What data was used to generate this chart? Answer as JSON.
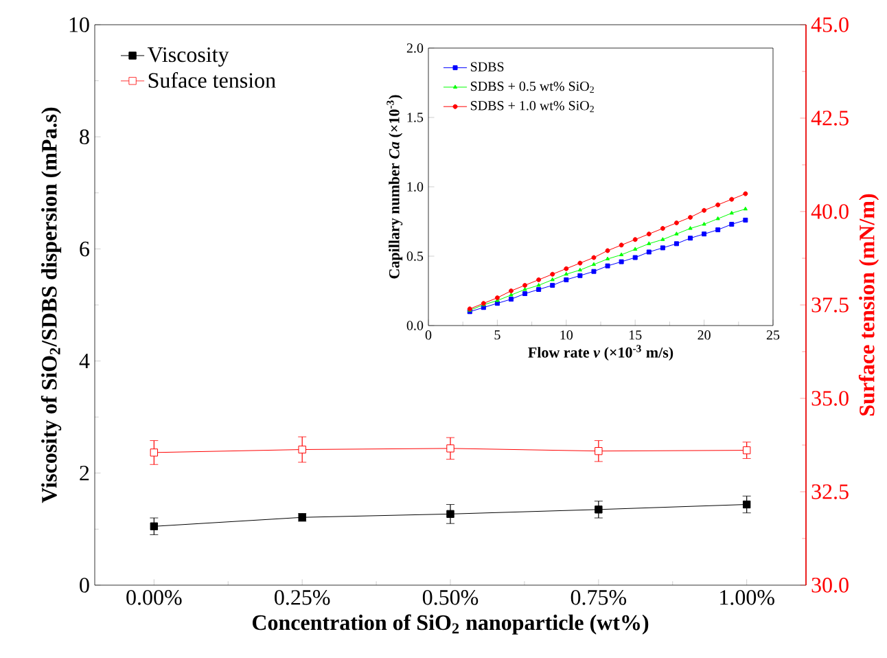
{
  "chart_data": [
    {
      "type": "line",
      "xlabel": "Concentration of SiO$_{2}$ nanoparticle (wt%)",
      "ylabel": "Viscosity of SiO$_{2}$/SDBS dispersion (mPa.s)",
      "y2label": "Surface tension (mN/m)",
      "x": [
        0,
        0.25,
        0.5,
        0.75,
        1.0
      ],
      "xlim": [
        -0.1,
        1.1
      ],
      "xticks": [
        {
          "value": 0,
          "label": "0.00%"
        },
        {
          "value": 0.25,
          "label": "0.25%"
        },
        {
          "value": 0.5,
          "label": "0.50%"
        },
        {
          "value": 0.75,
          "label": "0.75%"
        },
        {
          "value": 1.0,
          "label": "1.00%"
        }
      ],
      "ylim": [
        0,
        10
      ],
      "yticks": [
        0,
        2,
        4,
        6,
        8,
        10
      ],
      "y2lim": [
        30,
        45
      ],
      "y2ticks": [
        {
          "value": 30,
          "label": "30.0"
        },
        {
          "value": 32.5,
          "label": "32.5"
        },
        {
          "value": 35,
          "label": "35.0"
        },
        {
          "value": 37.5,
          "label": "37.5"
        },
        {
          "value": 40,
          "label": "40.0"
        },
        {
          "value": 42.5,
          "label": "42.5"
        },
        {
          "value": 45,
          "label": "45.0"
        }
      ],
      "legend": "top left",
      "marker": "square",
      "series": [
        {
          "name": "Viscosity",
          "color": "#000000",
          "values": [
            1.05,
            1.21,
            1.27,
            1.35,
            1.44
          ],
          "errors": [
            0.15,
            0.07,
            0.17,
            0.15,
            0.15
          ]
        },
        {
          "name": "Suface tension",
          "color": "#ff0000",
          "axis": "y2",
          "values": [
            33.55,
            33.63,
            33.66,
            33.59,
            33.61
          ],
          "errors": [
            0.32,
            0.34,
            0.29,
            0.28,
            0.22
          ]
        }
      ]
    },
    {
      "type": "line",
      "xlabel": "Flow rate *v* (×10$^{-3}$ m/s)",
      "ylabel": "Capillary number *Ca* (×10$^{-3}$)",
      "x": [
        3,
        4,
        5,
        6,
        7,
        8,
        9,
        10,
        11,
        12,
        13,
        14,
        15,
        16,
        17,
        18,
        19,
        20,
        21,
        22,
        23
      ],
      "xlim": [
        0,
        25
      ],
      "xticks": [
        0,
        5,
        10,
        15,
        20,
        25
      ],
      "ylim": [
        0,
        2
      ],
      "yticks": [
        {
          "value": 0,
          "label": "0.0"
        },
        {
          "value": 0.5,
          "label": "0.5"
        },
        {
          "value": 1,
          "label": "1.0"
        },
        {
          "value": 1.5,
          "label": "1.5"
        },
        {
          "value": 2,
          "label": "2.0"
        }
      ],
      "legend": "top left",
      "series": [
        {
          "name": "SDBS",
          "color": "#0000ff",
          "marker": "square",
          "values": [
            0.1,
            0.13,
            0.16,
            0.19,
            0.23,
            0.26,
            0.29,
            0.33,
            0.36,
            0.39,
            0.43,
            0.46,
            0.49,
            0.53,
            0.56,
            0.59,
            0.63,
            0.66,
            0.69,
            0.73,
            0.76
          ]
        },
        {
          "name": "SDBS + 0.5 wt% SiO$_{2}$",
          "color": "#00ff00",
          "marker": "triangle",
          "values": [
            0.11,
            0.15,
            0.18,
            0.22,
            0.26,
            0.29,
            0.33,
            0.37,
            0.4,
            0.44,
            0.48,
            0.51,
            0.55,
            0.59,
            0.62,
            0.66,
            0.7,
            0.73,
            0.77,
            0.81,
            0.84
          ]
        },
        {
          "name": "SDBS + 1.0 wt% SiO$_{2}$",
          "color": "#ff0000",
          "marker": "circle",
          "values": [
            0.12,
            0.16,
            0.2,
            0.25,
            0.29,
            0.33,
            0.37,
            0.41,
            0.45,
            0.49,
            0.54,
            0.58,
            0.62,
            0.66,
            0.7,
            0.74,
            0.78,
            0.83,
            0.87,
            0.91,
            0.95
          ]
        }
      ]
    }
  ]
}
